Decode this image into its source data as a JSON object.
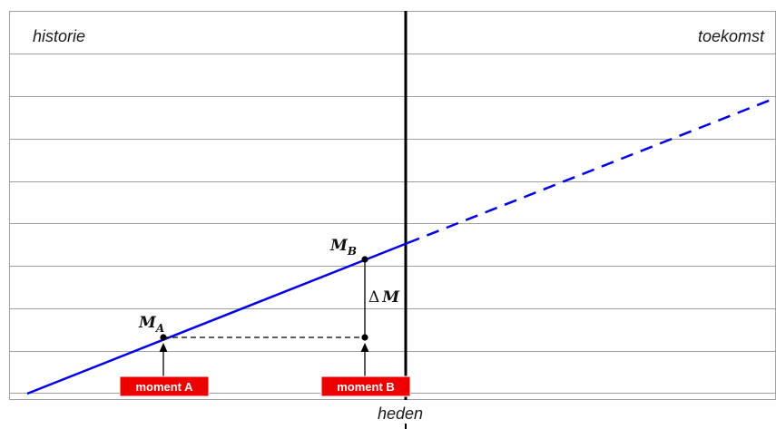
{
  "labels": {
    "history": "historie",
    "future": "toekomst",
    "present": "heden"
  },
  "points": {
    "a": {
      "symbol": "M",
      "subscript": "A"
    },
    "b": {
      "symbol": "M",
      "subscript": "B"
    }
  },
  "delta": {
    "prefix": "Δ",
    "symbol": "M"
  },
  "moments": {
    "a": {
      "prefix": "moment ",
      "letter": "A"
    },
    "b": {
      "prefix": "moment ",
      "letter": "B"
    }
  },
  "colors": {
    "trend_line": "#0000ee",
    "moment_box": "#ee0000",
    "grid": "#a0a0a0",
    "present_line": "#000000"
  }
}
